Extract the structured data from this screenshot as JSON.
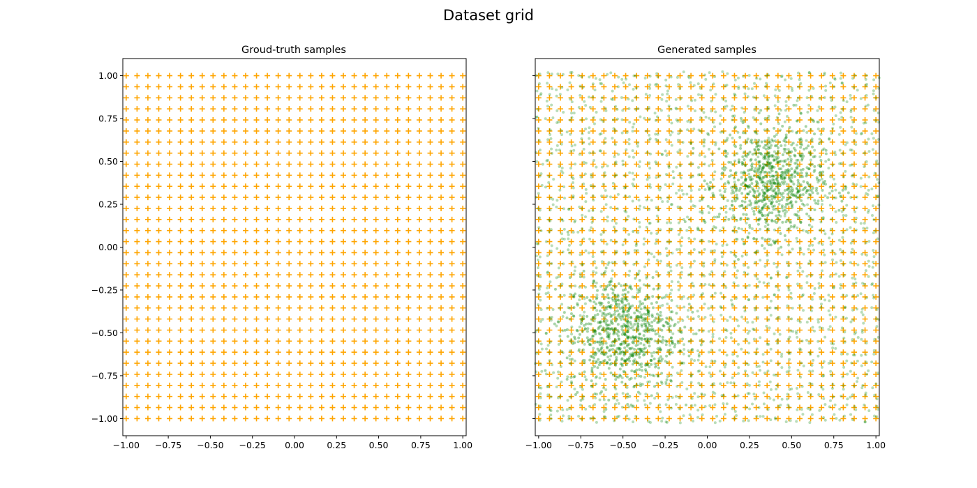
{
  "figure": {
    "title": "Dataset grid"
  },
  "colors": {
    "ground_truth": "#ffa500",
    "generated": "#008000"
  },
  "chart_data": [
    {
      "type": "scatter",
      "title": "Groud-truth samples",
      "xlim": [
        -1.02,
        1.02
      ],
      "ylim": [
        -1.1,
        1.1
      ],
      "xticks": [
        "−1.00",
        "−0.75",
        "−0.50",
        "−0.25",
        "0.00",
        "0.25",
        "0.50",
        "0.75",
        "1.00"
      ],
      "yticks": [
        "−1.00",
        "−0.75",
        "−0.50",
        "−0.25",
        "0.00",
        "0.25",
        "0.50",
        "0.75",
        "1.00"
      ],
      "grid": false,
      "series": [
        {
          "marker": "plus",
          "color": "#ffa500",
          "grid_points": {
            "x_range": [
              -1,
              1
            ],
            "y_range": [
              -1,
              1
            ],
            "count_per_axis": 32
          }
        }
      ]
    },
    {
      "type": "scatter",
      "title": "Generated samples",
      "xlim": [
        -1.02,
        1.02
      ],
      "ylim": [
        -1.1,
        1.1
      ],
      "xticks": [
        "−1.00",
        "−0.75",
        "−0.50",
        "−0.25",
        "0.00",
        "0.25",
        "0.50",
        "0.75",
        "1.00"
      ],
      "yticks": [],
      "grid": false,
      "series": [
        {
          "marker": "plus",
          "color": "#ffa500",
          "grid_points": {
            "x_range": [
              -1,
              1
            ],
            "y_range": [
              -1,
              1
            ],
            "count_per_axis": 32
          }
        },
        {
          "marker": "dot",
          "color": "#008000",
          "alpha": 0.3,
          "clusters": [
            {
              "center": [
                0.38,
                0.38
              ],
              "spread": 0.28
            },
            {
              "center": [
                -0.5,
                -0.5
              ],
              "spread": 0.3
            }
          ]
        }
      ]
    }
  ]
}
